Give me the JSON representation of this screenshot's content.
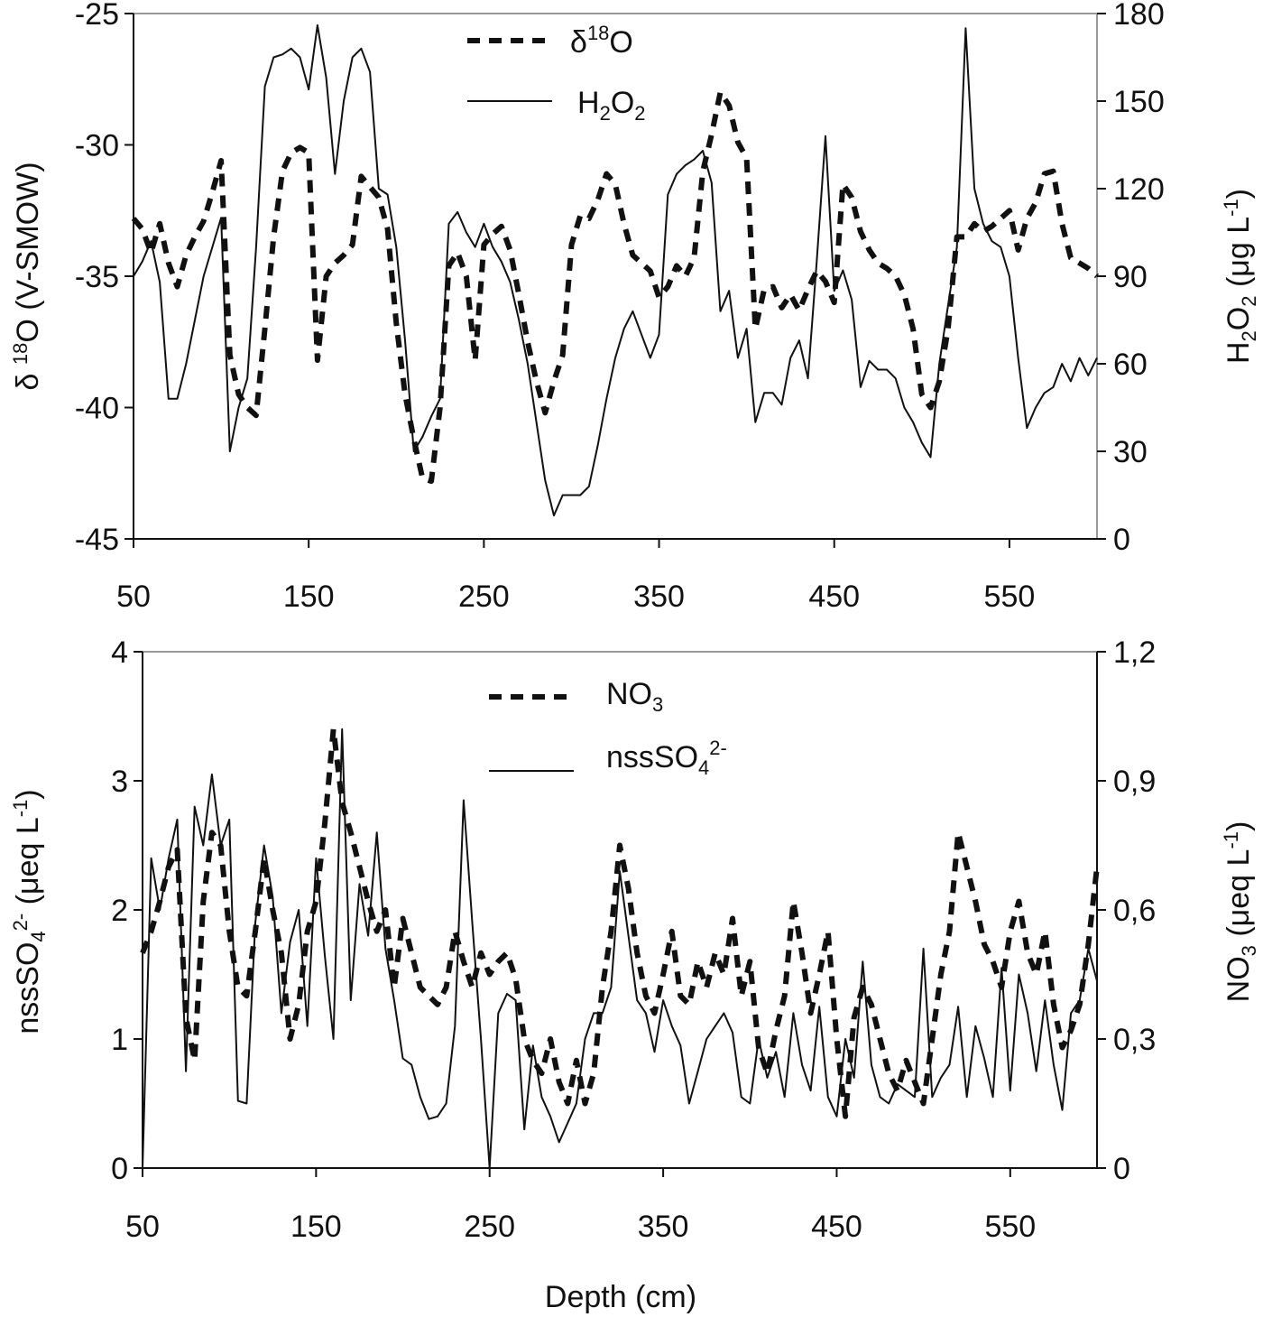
{
  "chart_data": [
    {
      "type": "line",
      "x_ticks": [
        "50",
        "150",
        "250",
        "350",
        "450",
        "550"
      ],
      "y_left_ticks": [
        "-25",
        "-30",
        "-35",
        "-40",
        "-45"
      ],
      "y_right_ticks": [
        "180",
        "150",
        "120",
        "90",
        "60",
        "30",
        "0"
      ],
      "xlim": [
        50,
        600
      ],
      "ylim_left": [
        -45,
        -25
      ],
      "ylim_right": [
        0,
        180
      ],
      "ylabel_left": "δ 18O (V-SMOW)",
      "ylabel_left_parts": [
        "δ ",
        "18",
        "O (V-SMOW)"
      ],
      "ylabel_right": "H2O2 (μg L-1)",
      "ylabel_right_parts": [
        "H",
        "2",
        "O",
        "2",
        " (μg L",
        "-1",
        ")"
      ],
      "legend_position": "top-center",
      "series": [
        {
          "name": "δ18O",
          "name_parts": [
            "δ",
            "18",
            "O"
          ],
          "style": "dashed",
          "axis": "left",
          "x": [
            50,
            55,
            60,
            65,
            70,
            75,
            80,
            85,
            90,
            95,
            100,
            105,
            110,
            115,
            120,
            125,
            130,
            135,
            140,
            145,
            150,
            155,
            160,
            165,
            170,
            175,
            180,
            185,
            190,
            195,
            200,
            205,
            210,
            215,
            220,
            225,
            230,
            235,
            240,
            245,
            250,
            255,
            260,
            265,
            270,
            275,
            280,
            285,
            290,
            295,
            300,
            305,
            310,
            315,
            320,
            325,
            330,
            335,
            340,
            345,
            350,
            355,
            360,
            365,
            370,
            375,
            380,
            385,
            390,
            395,
            400,
            405,
            410,
            415,
            420,
            425,
            430,
            435,
            440,
            445,
            450,
            455,
            460,
            465,
            470,
            475,
            480,
            485,
            490,
            495,
            500,
            505,
            510,
            515,
            520,
            525,
            530,
            535,
            540,
            545,
            550,
            555,
            560,
            565,
            570,
            575,
            580,
            585,
            590,
            595,
            600
          ],
          "values": [
            -32.8,
            -33.2,
            -34.1,
            -33.0,
            -34.5,
            -35.4,
            -34.2,
            -33.5,
            -32.9,
            -31.8,
            -30.6,
            -38.0,
            -39.5,
            -40.0,
            -40.3,
            -37.0,
            -33.5,
            -31.0,
            -30.3,
            -30.1,
            -30.3,
            -38.2,
            -35.0,
            -34.5,
            -34.2,
            -33.8,
            -31.2,
            -31.6,
            -32.0,
            -33.2,
            -36.8,
            -39.5,
            -41.2,
            -42.7,
            -42.8,
            -40.0,
            -34.6,
            -34.1,
            -35.0,
            -38.2,
            -33.8,
            -33.4,
            -33.1,
            -34.0,
            -35.7,
            -37.5,
            -39.0,
            -40.2,
            -39.0,
            -38.0,
            -33.8,
            -32.7,
            -32.8,
            -32.1,
            -31.1,
            -31.5,
            -33.0,
            -34.2,
            -34.5,
            -34.8,
            -35.8,
            -35.4,
            -34.6,
            -35.0,
            -34.3,
            -31.0,
            -29.6,
            -28.0,
            -28.5,
            -29.9,
            -30.5,
            -37.0,
            -35.5,
            -35.4,
            -36.2,
            -35.7,
            -36.3,
            -35.5,
            -34.8,
            -35.2,
            -36.0,
            -31.5,
            -32.0,
            -33.3,
            -34.0,
            -34.5,
            -34.7,
            -35.0,
            -35.7,
            -37.0,
            -39.5,
            -40.0,
            -39.0,
            -37.0,
            -33.5,
            -33.5,
            -33.0,
            -33.3,
            -33.1,
            -32.8,
            -32.5,
            -34.0,
            -32.8,
            -32.2,
            -31.1,
            -31.0,
            -33.0,
            -34.3,
            -34.5,
            -34.7,
            -35.0
          ]
        },
        {
          "name": "H2O2",
          "name_parts": [
            "H",
            "2",
            "O",
            "2"
          ],
          "style": "solid",
          "axis": "right",
          "x": [
            50,
            55,
            60,
            65,
            70,
            75,
            80,
            85,
            90,
            95,
            100,
            105,
            110,
            115,
            120,
            125,
            130,
            135,
            140,
            145,
            150,
            155,
            160,
            165,
            170,
            175,
            180,
            185,
            190,
            195,
            200,
            205,
            210,
            215,
            220,
            225,
            230,
            235,
            240,
            245,
            250,
            255,
            260,
            265,
            270,
            275,
            280,
            285,
            290,
            295,
            300,
            305,
            310,
            315,
            320,
            325,
            330,
            335,
            340,
            345,
            350,
            355,
            360,
            365,
            370,
            375,
            380,
            385,
            390,
            395,
            400,
            405,
            410,
            415,
            420,
            425,
            430,
            435,
            440,
            445,
            450,
            455,
            460,
            465,
            470,
            475,
            480,
            485,
            490,
            495,
            500,
            505,
            510,
            515,
            520,
            525,
            530,
            535,
            540,
            545,
            550,
            555,
            560,
            565,
            570,
            575,
            580,
            585,
            590,
            595,
            600
          ],
          "values": [
            90,
            95,
            102,
            88,
            48,
            48,
            60,
            75,
            90,
            100,
            110,
            30,
            45,
            55,
            100,
            155,
            165,
            166,
            168,
            165,
            154,
            176,
            158,
            125,
            150,
            165,
            168,
            160,
            120,
            118,
            100,
            68,
            30,
            35,
            42,
            48,
            108,
            112,
            105,
            100,
            108,
            100,
            95,
            88,
            75,
            60,
            40,
            20,
            8,
            15,
            15,
            15,
            18,
            32,
            48,
            62,
            72,
            78,
            70,
            62,
            70,
            118,
            125,
            128,
            130,
            133,
            122,
            78,
            85,
            62,
            72,
            40,
            50,
            50,
            46,
            62,
            68,
            55,
            95,
            138,
            85,
            92,
            82,
            52,
            61,
            58,
            58,
            55,
            45,
            40,
            33,
            28,
            60,
            80,
            100,
            175,
            120,
            108,
            102,
            100,
            90,
            62,
            38,
            45,
            50,
            52,
            60,
            54,
            62,
            56,
            62
          ]
        }
      ]
    },
    {
      "type": "line",
      "x_ticks": [
        "50",
        "150",
        "250",
        "350",
        "450",
        "550"
      ],
      "y_left_ticks": [
        "4",
        "3",
        "2",
        "1",
        "0"
      ],
      "y_right_ticks": [
        "1,2",
        "0,9",
        "0,6",
        "0,3",
        "0"
      ],
      "xlim": [
        50,
        600
      ],
      "ylim_left": [
        0,
        4
      ],
      "ylim_right": [
        0,
        1.2
      ],
      "xlabel": "Depth  (cm)",
      "ylabel_left": "nssSO4 2- (μeq L-1)",
      "ylabel_left_parts": [
        "nssSO",
        "4",
        "2-",
        "  (μeq L",
        "-1",
        ")"
      ],
      "ylabel_right": "NO3 (μeq L-1)",
      "ylabel_right_parts": [
        "NO",
        "3",
        " (μeq L",
        "-1",
        ")"
      ],
      "legend_position": "top-center",
      "series": [
        {
          "name": "NO3",
          "name_parts": [
            "NO",
            "3"
          ],
          "style": "dashed",
          "axis": "right",
          "x": [
            50,
            55,
            60,
            65,
            70,
            75,
            80,
            85,
            90,
            95,
            100,
            105,
            110,
            115,
            120,
            125,
            130,
            135,
            140,
            145,
            150,
            155,
            160,
            165,
            170,
            175,
            180,
            185,
            190,
            195,
            200,
            205,
            210,
            215,
            220,
            225,
            230,
            235,
            240,
            245,
            250,
            255,
            260,
            265,
            270,
            275,
            280,
            285,
            290,
            295,
            300,
            305,
            310,
            315,
            320,
            325,
            330,
            335,
            340,
            345,
            350,
            355,
            360,
            365,
            370,
            375,
            380,
            385,
            390,
            395,
            400,
            405,
            410,
            415,
            420,
            425,
            430,
            435,
            440,
            445,
            450,
            455,
            460,
            465,
            470,
            475,
            480,
            485,
            490,
            495,
            500,
            505,
            510,
            515,
            520,
            525,
            530,
            535,
            540,
            545,
            550,
            555,
            560,
            565,
            570,
            575,
            580,
            585,
            590,
            595,
            600
          ],
          "values": [
            0.5,
            0.55,
            0.62,
            0.7,
            0.74,
            0.35,
            0.25,
            0.62,
            0.78,
            0.75,
            0.55,
            0.42,
            0.4,
            0.55,
            0.72,
            0.6,
            0.5,
            0.3,
            0.38,
            0.55,
            0.62,
            0.8,
            1.02,
            0.85,
            0.78,
            0.7,
            0.62,
            0.55,
            0.6,
            0.42,
            0.58,
            0.5,
            0.42,
            0.4,
            0.38,
            0.42,
            0.55,
            0.48,
            0.42,
            0.5,
            0.45,
            0.48,
            0.5,
            0.44,
            0.3,
            0.25,
            0.22,
            0.3,
            0.2,
            0.15,
            0.25,
            0.15,
            0.22,
            0.42,
            0.55,
            0.75,
            0.65,
            0.5,
            0.4,
            0.36,
            0.45,
            0.55,
            0.4,
            0.38,
            0.48,
            0.42,
            0.5,
            0.45,
            0.58,
            0.4,
            0.48,
            0.28,
            0.22,
            0.32,
            0.4,
            0.62,
            0.5,
            0.36,
            0.45,
            0.55,
            0.3,
            0.12,
            0.35,
            0.42,
            0.38,
            0.3,
            0.22,
            0.18,
            0.25,
            0.2,
            0.15,
            0.3,
            0.45,
            0.55,
            0.78,
            0.7,
            0.62,
            0.52,
            0.48,
            0.42,
            0.55,
            0.62,
            0.5,
            0.45,
            0.55,
            0.38,
            0.28,
            0.32,
            0.38,
            0.52,
            0.7
          ]
        },
        {
          "name": "nssSO42-",
          "name_parts": [
            "nssSO",
            "4",
            "2-"
          ],
          "style": "solid",
          "axis": "left",
          "x": [
            50,
            55,
            60,
            65,
            70,
            75,
            80,
            85,
            90,
            95,
            100,
            105,
            110,
            115,
            120,
            125,
            130,
            135,
            140,
            145,
            150,
            155,
            160,
            165,
            170,
            175,
            180,
            185,
            190,
            195,
            200,
            205,
            210,
            215,
            220,
            225,
            230,
            235,
            240,
            245,
            250,
            255,
            260,
            265,
            270,
            275,
            280,
            285,
            290,
            295,
            300,
            305,
            310,
            315,
            320,
            325,
            330,
            335,
            340,
            345,
            350,
            355,
            360,
            365,
            370,
            375,
            380,
            385,
            390,
            395,
            400,
            405,
            410,
            415,
            420,
            425,
            430,
            435,
            440,
            445,
            450,
            455,
            460,
            465,
            470,
            475,
            480,
            485,
            490,
            495,
            500,
            505,
            510,
            515,
            520,
            525,
            530,
            535,
            540,
            545,
            550,
            555,
            560,
            565,
            570,
            575,
            580,
            585,
            590,
            595,
            600
          ],
          "values": [
            0.0,
            2.4,
            2.0,
            2.4,
            2.7,
            0.75,
            2.8,
            2.5,
            3.05,
            2.5,
            2.7,
            0.52,
            0.5,
            1.9,
            2.5,
            2.1,
            1.2,
            1.75,
            2.0,
            1.1,
            2.4,
            1.65,
            1.0,
            3.4,
            1.3,
            2.2,
            1.8,
            2.6,
            1.7,
            1.3,
            0.85,
            0.8,
            0.55,
            0.38,
            0.4,
            0.5,
            1.1,
            2.85,
            1.9,
            1.0,
            0.0,
            1.2,
            1.35,
            1.3,
            0.3,
            0.95,
            0.55,
            0.4,
            0.2,
            0.35,
            0.5,
            1.0,
            1.2,
            1.2,
            1.4,
            2.3,
            1.8,
            1.3,
            1.2,
            0.9,
            1.3,
            1.1,
            0.95,
            0.5,
            0.75,
            1.0,
            1.1,
            1.2,
            1.05,
            0.55,
            0.5,
            1.0,
            0.7,
            0.9,
            0.55,
            1.2,
            0.8,
            0.6,
            1.25,
            0.55,
            0.4,
            1.0,
            0.7,
            1.6,
            0.8,
            0.55,
            0.5,
            0.65,
            0.6,
            0.55,
            1.7,
            0.55,
            0.7,
            0.8,
            1.25,
            0.55,
            1.1,
            0.85,
            0.55,
            1.55,
            0.6,
            1.5,
            1.2,
            0.75,
            1.3,
            0.8,
            0.45,
            1.2,
            1.3,
            1.7,
            1.45
          ]
        }
      ]
    }
  ]
}
